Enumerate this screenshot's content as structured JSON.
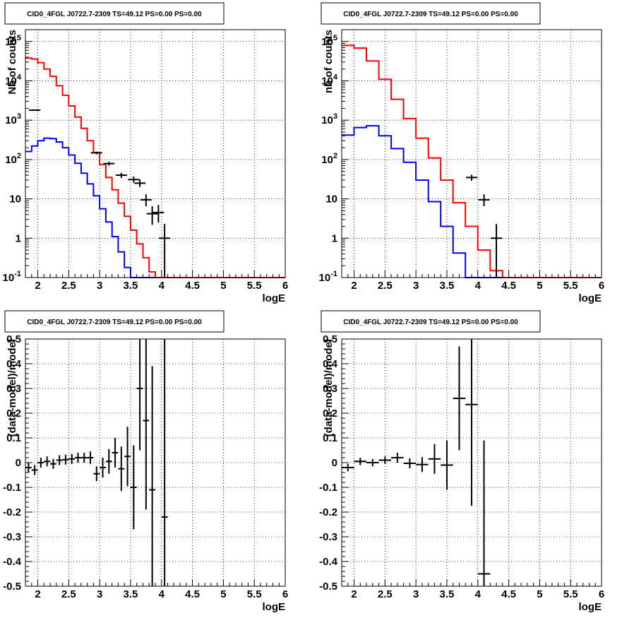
{
  "colors": {
    "model_total": "#ff0000",
    "model_source": "#0000ff",
    "data": "#000000"
  },
  "chart_data": [
    {
      "id": "counts-left",
      "type": "line",
      "title": "CID0_4FGL J0722.7-2309 TS=49.12 PS=0.00 PS=0.00",
      "xlabel": "logE",
      "ylabel": "Nb of counts",
      "xlim": [
        1.8,
        6.0
      ],
      "ylim": [
        0.1,
        200000
      ],
      "yscale": "log",
      "grid": true,
      "xticks": [
        "2",
        "2.5",
        "3",
        "3.5",
        "4",
        "4.5",
        "5",
        "5.5",
        "6"
      ],
      "yticks": [
        "10^-1",
        "1",
        "10",
        "10^2",
        "10^3",
        "10^4",
        "10^5"
      ],
      "bin_edges": [
        1.8,
        1.9,
        2.0,
        2.1,
        2.2,
        2.3,
        2.4,
        2.5,
        2.6,
        2.7,
        2.8,
        2.9,
        3.0,
        3.1,
        3.2,
        3.3,
        3.4,
        3.5,
        3.6,
        3.7,
        3.8,
        3.9,
        4.0,
        4.1,
        4.2,
        4.3,
        4.4,
        4.5,
        4.6,
        4.7,
        4.8,
        4.9,
        5.0,
        5.1,
        5.2,
        5.3,
        5.4,
        5.5,
        5.6,
        5.7,
        5.8,
        5.9,
        6.0
      ],
      "series": [
        {
          "role": "total",
          "values": [
            38000,
            36000,
            29000,
            20000,
            13000,
            7500,
            4300,
            2300,
            1200,
            620,
            300,
            150,
            75,
            35,
            17,
            7.8,
            3.6,
            1.6,
            0.72,
            0.32,
            0.14,
            0.1,
            0.1,
            0.1,
            0.1,
            0.1,
            0.1,
            0.1,
            0.1,
            0.1,
            0.1,
            0.1,
            0.1,
            0.1,
            0.1,
            0.1,
            0.1,
            0.1,
            0.1,
            0.1,
            0.1,
            0.1
          ]
        },
        {
          "role": "source",
          "values": [
            160,
            220,
            300,
            350,
            340,
            280,
            200,
            130,
            80,
            45,
            24,
            12,
            5.6,
            2.6,
            1.1,
            0.45,
            0.18,
            0.1,
            0.1,
            0.1,
            0.1,
            0.1,
            0.1,
            0.1,
            0.1,
            0.1,
            0.1,
            0.1,
            0.1,
            0.1,
            0.1,
            0.1,
            0.1,
            0.1,
            0.1,
            0.1,
            0.1,
            0.1,
            0.1,
            0.1,
            0.1,
            0.1
          ]
        }
      ],
      "points": [
        {
          "x": 1.95,
          "y": 1800,
          "yerr": [
            1750,
            1850
          ]
        },
        {
          "x": 2.95,
          "y": 148,
          "yerr": [
            136,
            160
          ]
        },
        {
          "x": 3.15,
          "y": 79,
          "yerr": [
            70,
            88
          ]
        },
        {
          "x": 3.35,
          "y": 40,
          "yerr": [
            34,
            46
          ]
        },
        {
          "x": 3.55,
          "y": 31,
          "yerr": [
            26,
            37
          ]
        },
        {
          "x": 3.65,
          "y": 25,
          "yerr": [
            20,
            31
          ]
        },
        {
          "x": 3.75,
          "y": 9.5,
          "yerr": [
            6.5,
            13
          ]
        },
        {
          "x": 3.85,
          "y": 4.2,
          "yerr": [
            2.2,
            6.5
          ]
        },
        {
          "x": 3.95,
          "y": 4.5,
          "yerr": [
            2.5,
            7
          ]
        },
        {
          "x": 4.05,
          "y": 1.0,
          "yerr": [
            0.1,
            2.3
          ]
        }
      ]
    },
    {
      "id": "counts-right",
      "type": "line",
      "title": "CID0_4FGL J0722.7-2309 TS=49.12 PS=0.00 PS=0.00",
      "xlabel": "logE",
      "ylabel": "nb of counts",
      "xlim": [
        1.8,
        6.0
      ],
      "ylim": [
        0.1,
        200000
      ],
      "yscale": "log",
      "grid": true,
      "xticks": [
        "2",
        "2.5",
        "3",
        "3.5",
        "4",
        "4.5",
        "5",
        "5.5",
        "6"
      ],
      "yticks": [
        "10^-1",
        "1",
        "10",
        "10^2",
        "10^3",
        "10^4",
        "10^5"
      ],
      "bin_edges": [
        1.8,
        2.0,
        2.2,
        2.4,
        2.6,
        2.8,
        3.0,
        3.2,
        3.4,
        3.6,
        3.8,
        4.0,
        4.2,
        4.4,
        4.6,
        4.8,
        5.0,
        5.2,
        5.4,
        5.6,
        5.8,
        6.0
      ],
      "series": [
        {
          "role": "total",
          "values": [
            80000,
            68000,
            32000,
            11000,
            3400,
            1100,
            350,
            110,
            30,
            8,
            2,
            0.5,
            0.15,
            0.1,
            0.1,
            0.1,
            0.1,
            0.1,
            0.1,
            0.1,
            0.1
          ]
        },
        {
          "role": "source",
          "values": [
            420,
            650,
            720,
            400,
            190,
            85,
            30,
            8.5,
            2,
            0.42,
            0.1,
            0.1,
            0.1,
            0.1,
            0.1,
            0.1,
            0.1,
            0.1,
            0.1,
            0.1,
            0.1
          ]
        }
      ],
      "points": [
        {
          "x": 3.9,
          "y": 35,
          "yerr": [
            29,
            41
          ]
        },
        {
          "x": 4.1,
          "y": 9.5,
          "yerr": [
            6.5,
            13
          ]
        },
        {
          "x": 4.3,
          "y": 1.0,
          "yerr": [
            0.1,
            2.3
          ]
        }
      ]
    },
    {
      "id": "resid-left",
      "type": "scatter",
      "title": "CID0_4FGL J0722.7-2309 TS=49.12 PS=0.00 PS=0.00",
      "xlabel": "logE",
      "ylabel": "(data-model)/model",
      "xlim": [
        1.8,
        6.0
      ],
      "ylim": [
        -0.5,
        0.5
      ],
      "grid": true,
      "xticks": [
        "2",
        "2.5",
        "3",
        "3.5",
        "4",
        "4.5",
        "5",
        "5.5",
        "6"
      ],
      "yticks": [
        "-0.5",
        "-0.4",
        "-0.3",
        "-0.2",
        "-0.1",
        "0",
        "0.1",
        "0.2",
        "0.3",
        "0.4",
        "0.5"
      ],
      "points": [
        {
          "x": 1.85,
          "xerr": 0.05,
          "y": -0.02,
          "yerr": 0.02
        },
        {
          "x": 1.95,
          "xerr": 0.05,
          "y": -0.03,
          "yerr": 0.02
        },
        {
          "x": 2.05,
          "xerr": 0.05,
          "y": 0.0,
          "yerr": 0.02
        },
        {
          "x": 2.15,
          "xerr": 0.05,
          "y": 0.005,
          "yerr": 0.02
        },
        {
          "x": 2.25,
          "xerr": 0.05,
          "y": -0.005,
          "yerr": 0.02
        },
        {
          "x": 2.35,
          "xerr": 0.05,
          "y": 0.01,
          "yerr": 0.02
        },
        {
          "x": 2.45,
          "xerr": 0.05,
          "y": 0.012,
          "yerr": 0.02
        },
        {
          "x": 2.55,
          "xerr": 0.05,
          "y": 0.015,
          "yerr": 0.02
        },
        {
          "x": 2.65,
          "xerr": 0.05,
          "y": 0.02,
          "yerr": 0.02
        },
        {
          "x": 2.75,
          "xerr": 0.05,
          "y": 0.02,
          "yerr": 0.02
        },
        {
          "x": 2.85,
          "xerr": 0.05,
          "y": 0.02,
          "yerr": 0.025
        },
        {
          "x": 2.95,
          "xerr": 0.05,
          "y": -0.045,
          "yerr": 0.03
        },
        {
          "x": 3.05,
          "xerr": 0.05,
          "y": -0.02,
          "yerr": 0.04
        },
        {
          "x": 3.15,
          "xerr": 0.05,
          "y": 0.005,
          "yerr": 0.05
        },
        {
          "x": 3.25,
          "xerr": 0.05,
          "y": 0.04,
          "yerr": 0.06
        },
        {
          "x": 3.35,
          "xerr": 0.05,
          "y": -0.025,
          "yerr": 0.09
        },
        {
          "x": 3.45,
          "xerr": 0.05,
          "y": 0.025,
          "yerr": 0.12
        },
        {
          "x": 3.55,
          "xerr": 0.05,
          "y": -0.1,
          "yerr": 0.17
        },
        {
          "x": 3.65,
          "xerr": 0.05,
          "y": 0.3,
          "yerr": 0.25
        },
        {
          "x": 3.75,
          "xerr": 0.05,
          "y": 0.17,
          "yerr": 0.36
        },
        {
          "x": 3.85,
          "xerr": 0.05,
          "y": -0.11,
          "yerr": 0.5
        },
        {
          "x": 4.05,
          "xerr": 0.05,
          "y": -0.22,
          "yerr": 0.72
        }
      ]
    },
    {
      "id": "resid-right",
      "type": "scatter",
      "title": "CID0_4FGL J0722.7-2309 TS=49.12 PS=0.00 PS=0.00",
      "xlabel": "logE",
      "ylabel": "(data-model)/model",
      "xlim": [
        1.8,
        6.0
      ],
      "ylim": [
        -0.5,
        0.5
      ],
      "grid": true,
      "xticks": [
        "2",
        "2.5",
        "3",
        "3.5",
        "4",
        "4.5",
        "5",
        "5.5",
        "6"
      ],
      "yticks": [
        "-0.5",
        "-0.4",
        "-0.3",
        "-0.2",
        "-0.1",
        "0",
        "0.1",
        "0.2",
        "0.3",
        "0.4",
        "0.5"
      ],
      "points": [
        {
          "x": 1.9,
          "xerr": 0.1,
          "y": -0.02,
          "yerr": 0.015
        },
        {
          "x": 2.1,
          "xerr": 0.1,
          "y": 0.005,
          "yerr": 0.015
        },
        {
          "x": 2.3,
          "xerr": 0.1,
          "y": 0.0,
          "yerr": 0.015
        },
        {
          "x": 2.5,
          "xerr": 0.1,
          "y": 0.01,
          "yerr": 0.015
        },
        {
          "x": 2.7,
          "xerr": 0.1,
          "y": 0.02,
          "yerr": 0.02
        },
        {
          "x": 2.9,
          "xerr": 0.1,
          "y": -0.003,
          "yerr": 0.02
        },
        {
          "x": 3.1,
          "xerr": 0.1,
          "y": -0.008,
          "yerr": 0.03
        },
        {
          "x": 3.3,
          "xerr": 0.1,
          "y": 0.015,
          "yerr": 0.06
        },
        {
          "x": 3.5,
          "xerr": 0.1,
          "y": -0.01,
          "yerr": 0.1
        },
        {
          "x": 3.7,
          "xerr": 0.1,
          "y": 0.26,
          "yerr": 0.21
        },
        {
          "x": 3.9,
          "xerr": 0.1,
          "y": 0.235,
          "yerr": 0.41
        },
        {
          "x": 4.1,
          "xerr": 0.1,
          "y": -0.45,
          "yerr": 0.54
        }
      ]
    }
  ]
}
